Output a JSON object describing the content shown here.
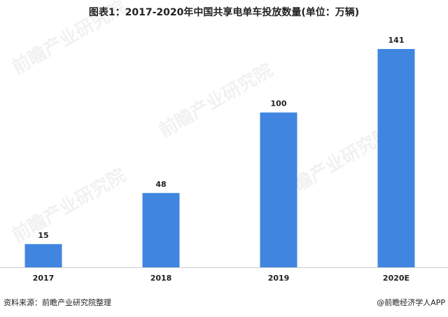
{
  "chart_data": {
    "type": "bar",
    "title": "图表1：2017-2020年中国共享电单车投放数量(单位：万辆)",
    "categories": [
      "2017",
      "2018",
      "2019",
      "2020E"
    ],
    "values": [
      15,
      48,
      100,
      141
    ],
    "color": "#4086e0",
    "source": "资料来源：前瞻产业研究院整理",
    "credit": "@前瞻经济学人APP",
    "watermark": "前瞻产业研究院"
  }
}
